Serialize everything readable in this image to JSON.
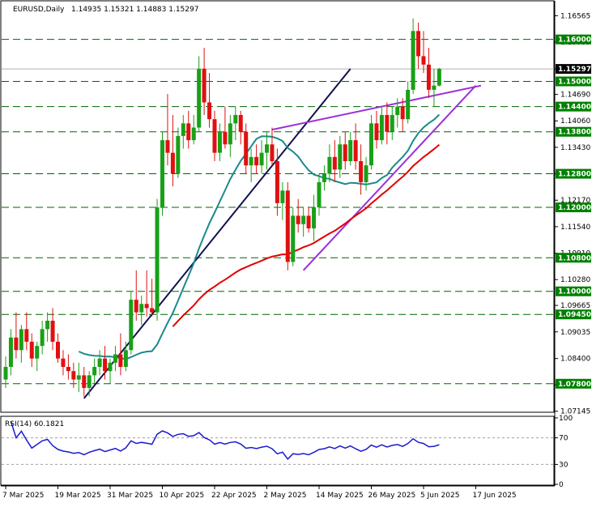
{
  "header": {
    "symbol": "EURUSD,Daily",
    "ohlc": "1.14935 1.15321 1.14883 1.15297"
  },
  "rsi_header": "RSI(14) 60.1821",
  "chart_data": [
    {
      "type": "candlestick",
      "instrument": "EURUSD",
      "timeframe": "Daily",
      "ylim": [
        1.0714,
        1.169
      ],
      "y_ticks": [
        "1.16565",
        "1.15935",
        "1.15297",
        "1.14690",
        "1.14060",
        "1.13430",
        "1.12800",
        "1.12170",
        "1.11540",
        "1.10910",
        "1.10280",
        "1.09665",
        "1.09035",
        "1.08400",
        "1.07775",
        "1.07145"
      ],
      "x_ticks": [
        "7 Mar 2025",
        "19 Mar 2025",
        "31 Mar 2025",
        "10 Apr 2025",
        "22 Apr 2025",
        "2 May 2025",
        "14 May 2025",
        "26 May 2025",
        "5 Jun 2025",
        "17 Jun 2025"
      ],
      "x_tick_index": [
        0,
        10,
        20,
        30,
        40,
        50,
        60,
        70,
        80,
        90
      ],
      "horizontal_levels": [
        "1.16000",
        "1.15000",
        "1.14400",
        "1.13800",
        "1.12800",
        "1.12000",
        "1.10800",
        "1.10000",
        "1.09450",
        "1.07800"
      ],
      "current_price": "1.15297",
      "candles": [
        [
          1.079,
          1.0845,
          1.077,
          1.082
        ],
        [
          1.082,
          1.091,
          1.08,
          1.089
        ],
        [
          1.089,
          1.095,
          1.084,
          1.086
        ],
        [
          1.086,
          1.092,
          1.083,
          1.091
        ],
        [
          1.091,
          1.095,
          1.086,
          1.088
        ],
        [
          1.088,
          1.09,
          1.082,
          1.084
        ],
        [
          1.084,
          1.088,
          1.081,
          1.087
        ],
        [
          1.087,
          1.093,
          1.085,
          1.091
        ],
        [
          1.091,
          1.095,
          1.088,
          1.093
        ],
        [
          1.093,
          1.096,
          1.086,
          1.088
        ],
        [
          1.088,
          1.09,
          1.083,
          1.084
        ],
        [
          1.084,
          1.086,
          1.08,
          1.082
        ],
        [
          1.082,
          1.085,
          1.079,
          1.081
        ],
        [
          1.081,
          1.083,
          1.077,
          1.079
        ],
        [
          1.079,
          1.083,
          1.076,
          1.08
        ],
        [
          1.08,
          1.082,
          1.075,
          1.077
        ],
        [
          1.077,
          1.081,
          1.075,
          1.08
        ],
        [
          1.08,
          1.084,
          1.078,
          1.082
        ],
        [
          1.082,
          1.086,
          1.08,
          1.084
        ],
        [
          1.084,
          1.087,
          1.079,
          1.081
        ],
        [
          1.081,
          1.084,
          1.078,
          1.083
        ],
        [
          1.083,
          1.087,
          1.081,
          1.085
        ],
        [
          1.085,
          1.09,
          1.08,
          1.082
        ],
        [
          1.082,
          1.088,
          1.081,
          1.086
        ],
        [
          1.086,
          1.1,
          1.085,
          1.098
        ],
        [
          1.098,
          1.105,
          1.093,
          1.095
        ],
        [
          1.095,
          1.099,
          1.092,
          1.097
        ],
        [
          1.097,
          1.105,
          1.094,
          1.096
        ],
        [
          1.096,
          1.103,
          1.094,
          1.095
        ],
        [
          1.095,
          1.122,
          1.093,
          1.12
        ],
        [
          1.12,
          1.138,
          1.118,
          1.136
        ],
        [
          1.136,
          1.147,
          1.13,
          1.133
        ],
        [
          1.133,
          1.142,
          1.125,
          1.128
        ],
        [
          1.128,
          1.139,
          1.127,
          1.137
        ],
        [
          1.137,
          1.142,
          1.134,
          1.14
        ],
        [
          1.14,
          1.143,
          1.134,
          1.136
        ],
        [
          1.136,
          1.142,
          1.135,
          1.139
        ],
        [
          1.139,
          1.156,
          1.138,
          1.153
        ],
        [
          1.153,
          1.158,
          1.142,
          1.145
        ],
        [
          1.145,
          1.152,
          1.139,
          1.141
        ],
        [
          1.141,
          1.143,
          1.131,
          1.133
        ],
        [
          1.133,
          1.14,
          1.131,
          1.138
        ],
        [
          1.138,
          1.144,
          1.134,
          1.135
        ],
        [
          1.135,
          1.142,
          1.132,
          1.14
        ],
        [
          1.14,
          1.144,
          1.136,
          1.142
        ],
        [
          1.142,
          1.143,
          1.135,
          1.138
        ],
        [
          1.138,
          1.14,
          1.128,
          1.13
        ],
        [
          1.13,
          1.134,
          1.126,
          1.132
        ],
        [
          1.132,
          1.135,
          1.128,
          1.13
        ],
        [
          1.13,
          1.136,
          1.128,
          1.133
        ],
        [
          1.133,
          1.138,
          1.129,
          1.135
        ],
        [
          1.135,
          1.139,
          1.13,
          1.131
        ],
        [
          1.131,
          1.134,
          1.118,
          1.121
        ],
        [
          1.121,
          1.126,
          1.117,
          1.124
        ],
        [
          1.124,
          1.126,
          1.105,
          1.107
        ],
        [
          1.107,
          1.12,
          1.106,
          1.118
        ],
        [
          1.118,
          1.122,
          1.114,
          1.116
        ],
        [
          1.116,
          1.12,
          1.113,
          1.118
        ],
        [
          1.118,
          1.12,
          1.114,
          1.115
        ],
        [
          1.115,
          1.123,
          1.112,
          1.12
        ],
        [
          1.12,
          1.128,
          1.118,
          1.126
        ],
        [
          1.126,
          1.13,
          1.124,
          1.128
        ],
        [
          1.128,
          1.135,
          1.126,
          1.132
        ],
        [
          1.132,
          1.136,
          1.126,
          1.129
        ],
        [
          1.129,
          1.137,
          1.127,
          1.135
        ],
        [
          1.135,
          1.138,
          1.129,
          1.131
        ],
        [
          1.131,
          1.138,
          1.13,
          1.136
        ],
        [
          1.136,
          1.14,
          1.129,
          1.131
        ],
        [
          1.131,
          1.135,
          1.123,
          1.126
        ],
        [
          1.126,
          1.132,
          1.124,
          1.13
        ],
        [
          1.13,
          1.142,
          1.129,
          1.14
        ],
        [
          1.14,
          1.143,
          1.134,
          1.136
        ],
        [
          1.136,
          1.144,
          1.135,
          1.142
        ],
        [
          1.142,
          1.145,
          1.135,
          1.138
        ],
        [
          1.138,
          1.144,
          1.136,
          1.142
        ],
        [
          1.142,
          1.146,
          1.139,
          1.144
        ],
        [
          1.144,
          1.146,
          1.138,
          1.141
        ],
        [
          1.141,
          1.15,
          1.14,
          1.148
        ],
        [
          1.148,
          1.165,
          1.147,
          1.162
        ],
        [
          1.162,
          1.164,
          1.153,
          1.156
        ],
        [
          1.156,
          1.162,
          1.152,
          1.154
        ],
        [
          1.154,
          1.158,
          1.146,
          1.148
        ],
        [
          1.148,
          1.153,
          1.144,
          1.149
        ],
        [
          1.149,
          1.1532,
          1.1488,
          1.153
        ]
      ],
      "indicators": [
        {
          "type": "moving_average",
          "color": "#e00000"
        },
        {
          "type": "moving_average",
          "color": "#1a8a8a"
        },
        {
          "type": "trendline",
          "color": "#9b30d9"
        },
        {
          "type": "trendline",
          "color": "#101050"
        }
      ]
    },
    {
      "type": "line",
      "indicator": "RSI(14)",
      "value": 60.1821,
      "ylim": [
        0,
        100
      ],
      "y_ticks": [
        "100",
        "70",
        "30",
        "0"
      ],
      "levels": [
        70,
        30
      ],
      "color": "#1a1ad0"
    }
  ],
  "colors": {
    "bull": "#18a018",
    "bear": "#e01010",
    "label_bg": "#008000",
    "current_bg": "#000000"
  }
}
